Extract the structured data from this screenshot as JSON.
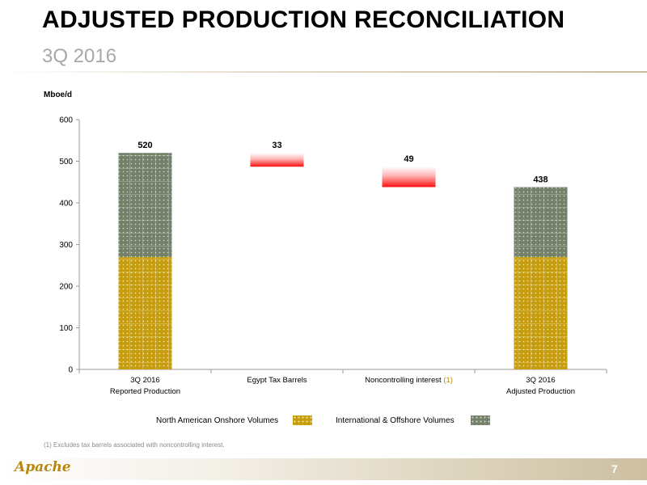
{
  "slide": {
    "title": "ADJUSTED PRODUCTION RECONCILIATION",
    "subtitle": "3Q 2016",
    "page_number": "7",
    "logo_text": "Apache",
    "footnote": "(1)  Excludes tax barrels associated with noncontrolling interest."
  },
  "legend": {
    "north_american": "North American Onshore Volumes",
    "international": "International & Offshore Volumes"
  },
  "colors": {
    "north_american": "#c79d10",
    "international": "#74806a",
    "reduction": "#ff1a1a",
    "gridline": "#9a9a9a"
  },
  "chart_data": {
    "type": "bar",
    "subtype": "waterfall",
    "ylabel": "Mboe/d",
    "ylim": [
      0,
      600
    ],
    "yticks": [
      0,
      100,
      200,
      300,
      400,
      500,
      600
    ],
    "categories": [
      {
        "line1": "3Q 2016",
        "line2": "Reported Production"
      },
      {
        "line1": "Egypt Tax Barrels",
        "line2": ""
      },
      {
        "line1": "Noncontrolling interest",
        "note": "(1)",
        "line2": ""
      },
      {
        "line1": "3Q 2016",
        "line2": "Adjusted Production"
      }
    ],
    "bars": [
      {
        "kind": "total",
        "total": 520,
        "label": "520",
        "segments": [
          {
            "series": "North American Onshore Volumes",
            "value": 270
          },
          {
            "series": "International & Offshore Volumes",
            "value": 250
          }
        ]
      },
      {
        "kind": "decrease",
        "from": 520,
        "value": 33,
        "label": "33"
      },
      {
        "kind": "decrease",
        "from": 487,
        "value": 49,
        "label": "49"
      },
      {
        "kind": "total",
        "total": 438,
        "label": "438",
        "segments": [
          {
            "series": "North American Onshore Volumes",
            "value": 270
          },
          {
            "series": "International & Offshore Volumes",
            "value": 168
          }
        ]
      }
    ]
  }
}
